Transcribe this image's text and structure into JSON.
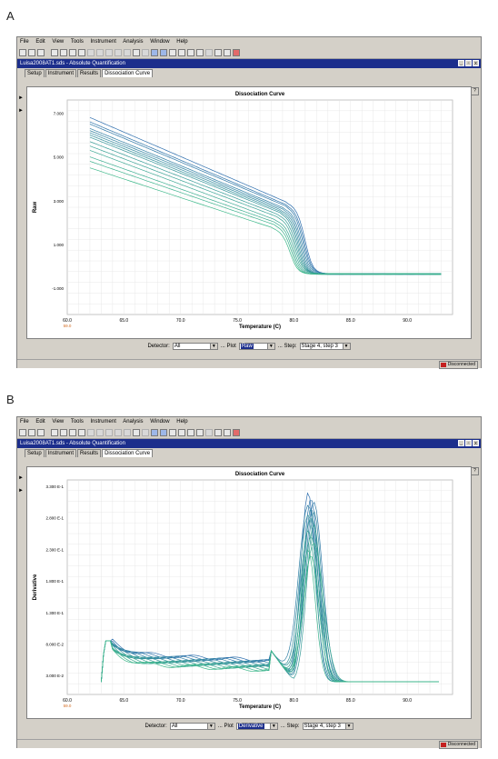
{
  "panels": [
    {
      "letter": "A",
      "menu": [
        "File",
        "Edit",
        "View",
        "Tools",
        "Instrument",
        "Analysis",
        "Window",
        "Help"
      ],
      "doc_title": "Luisa2008AT1.sds - Absolute Quantification",
      "tabs": [
        "Setup",
        "Instrument",
        "Results",
        "Dissociation Curve"
      ],
      "active_tab": 3,
      "chart_title": "Dissociation Curve",
      "detector_label": "Detector:",
      "detector_value": "All",
      "plot_label": "... Plot",
      "plot_value": "Raw",
      "step_label": "... Step:",
      "step_value": "Stage 4, step 3",
      "status": "Disconnected",
      "colors": {
        "accent": "#1c2e8c",
        "curve_blue": "#2f6fae",
        "curve_green": "#3db88a"
      }
    },
    {
      "letter": "B",
      "menu": [
        "File",
        "Edit",
        "View",
        "Tools",
        "Instrument",
        "Analysis",
        "Window",
        "Help"
      ],
      "doc_title": "Luisa2008AT1.sds - Absolute Quantification",
      "tabs": [
        "Setup",
        "Instrument",
        "Results",
        "Dissociation Curve"
      ],
      "active_tab": 3,
      "chart_title": "Dissociation Curve",
      "detector_label": "Detector:",
      "detector_value": "All",
      "plot_label": "... Plot",
      "plot_value": "Derivative",
      "step_label": "... Step:",
      "step_value": "Stage 4, step 3",
      "status": "Disconnected",
      "colors": {
        "accent": "#1c2e8c",
        "curve_blue": "#2f6fae",
        "curve_green": "#3db88a"
      }
    }
  ],
  "chart_data": [
    {
      "type": "line",
      "title": "Dissociation Curve",
      "xlabel": "Temperature (C)",
      "ylabel": "Raw",
      "x_ticks": [
        "60.0",
        "65.0",
        "70.0",
        "75.0",
        "80.0",
        "85.0",
        "90.0"
      ],
      "x_first_tick_sub": "59.0",
      "y_ticks": [
        "7.000",
        "5.000",
        "3.000",
        "1.000",
        "-1.000"
      ],
      "xlim": [
        60,
        94
      ],
      "ylim": [
        -2.2,
        7.6
      ],
      "grid": true,
      "melt_temp": 81,
      "series_start_y": [
        6.8,
        6.6,
        6.5,
        6.3,
        6.2,
        6.1,
        6.0,
        5.9,
        5.7,
        5.5,
        5.3,
        5.0,
        4.8,
        4.5
      ],
      "series_shoulder_y": [
        2.9,
        2.8,
        2.75,
        2.65,
        2.6,
        2.55,
        2.5,
        2.45,
        2.35,
        2.25,
        2.1,
        2.0,
        1.9,
        1.75
      ],
      "plateau_y": -0.35
    },
    {
      "type": "line",
      "title": "Dissociation Curve",
      "xlabel": "Temperature (C)",
      "ylabel": "Derivative",
      "x_ticks": [
        "60.0",
        "65.0",
        "70.0",
        "75.0",
        "80.0",
        "85.0",
        "90.0"
      ],
      "x_first_tick_sub": "59.0",
      "y_ticks": [
        "3.300 E-1",
        "2.800 E-1",
        "2.300 E-1",
        "1.800 E-1",
        "1.300 E-1",
        "8.000 E-2",
        "3.000 E-2"
      ],
      "xlim": [
        60,
        94
      ],
      "ylim": [
        0.0,
        0.34
      ],
      "grid": true,
      "peak_temp": 81.5,
      "peak_heights": [
        0.3,
        0.29,
        0.285,
        0.28,
        0.275,
        0.27,
        0.265,
        0.26,
        0.25,
        0.24,
        0.23,
        0.22,
        0.21,
        0.2
      ],
      "baseline_height": 0.065,
      "initial_spike": 0.085
    }
  ]
}
